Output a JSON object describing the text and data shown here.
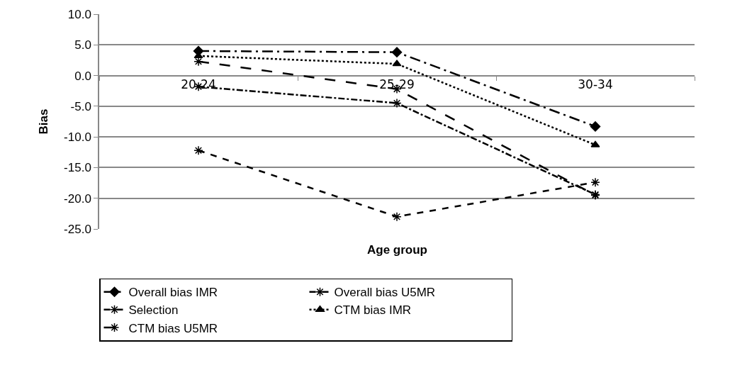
{
  "chart_data": {
    "type": "line",
    "xlabel": "Age group",
    "ylabel": "Bias",
    "categories": [
      "20-24",
      "25-29",
      "30-34"
    ],
    "series": [
      {
        "name": "Overall bias IMR",
        "color": "#000000",
        "marker": "diamond",
        "line_style": "longdashdot",
        "values": [
          4.0,
          3.8,
          -8.3
        ]
      },
      {
        "name": "Overall bias U5MR",
        "color": "#000000",
        "marker": "cross",
        "line_style": "dashdot",
        "values": [
          -1.8,
          -4.5,
          -19.4
        ]
      },
      {
        "name": "Selection",
        "color": "#000000",
        "marker": "cross",
        "line_style": "dashed",
        "values": [
          -12.2,
          -23.0,
          -17.4
        ]
      },
      {
        "name": "CTM bias IMR",
        "color": "#000000",
        "marker": "triangle",
        "line_style": "dotted",
        "values": [
          3.2,
          1.9,
          -11.3
        ]
      },
      {
        "name": "CTM bias U5MR",
        "color": "#000000",
        "marker": "cross",
        "line_style": "longdash",
        "values": [
          2.3,
          -2.2,
          -19.5
        ]
      }
    ],
    "ylim": [
      -25,
      10
    ],
    "yticks": [
      {
        "value": -25,
        "label": "-25.0"
      },
      {
        "value": -20,
        "label": "-20.0"
      },
      {
        "value": -15,
        "label": "-15.0"
      },
      {
        "value": -10,
        "label": "-10.0"
      },
      {
        "value": -5,
        "label": "-5.0"
      },
      {
        "value": 0,
        "label": "0.0"
      },
      {
        "value": 5,
        "label": "5.0"
      },
      {
        "value": 10,
        "label": "10.0"
      }
    ],
    "grid": "y",
    "legend": "bottom"
  }
}
